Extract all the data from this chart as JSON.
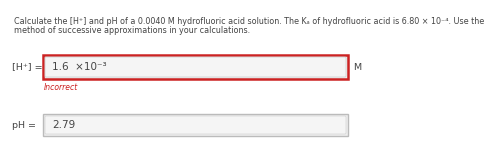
{
  "title_line1": "Calculate the [H⁺] and pH of a 0.0040 M hydrofluoric acid solution. The Kₐ of hydrofluoric acid is 6.80 × 10⁻⁴. Use the",
  "title_line2": "method of successive approximations in your calculations.",
  "label_h": "[H⁺] =",
  "label_ph": "pH =",
  "value_h": "1.6  ×10⁻³",
  "value_ph": "2.79",
  "unit_h": "M",
  "incorrect_text": "Incorrect",
  "bg_color": "#eeeeee",
  "page_bg": "#ffffff",
  "box_h_border": "#cc2222",
  "box_ph_border": "#bbbbbb",
  "incorrect_color": "#cc2222",
  "text_color": "#444444",
  "title_fontsize": 5.8,
  "label_fontsize": 6.8,
  "value_fontsize": 7.5,
  "incorrect_fontsize": 5.5,
  "unit_fontsize": 6.8
}
